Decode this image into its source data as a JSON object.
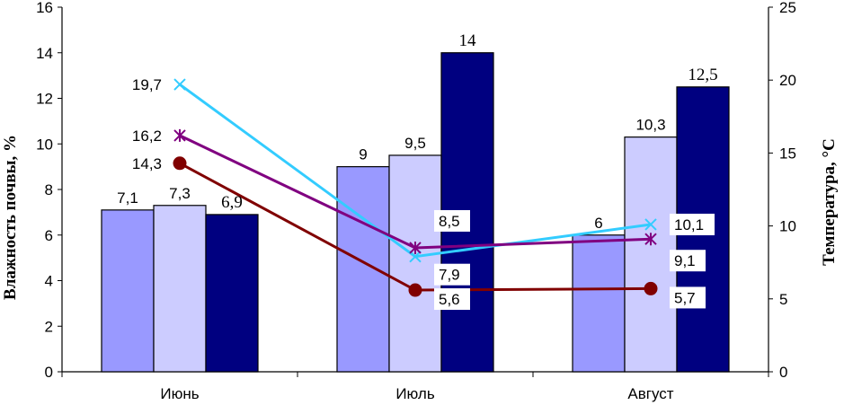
{
  "chart_data": {
    "type": "bar",
    "title": "",
    "categories": [
      "Июнь",
      "Июль",
      "Август"
    ],
    "left_axis": {
      "label": "Влажность почвы, %",
      "range": [
        0,
        16
      ],
      "ticks": [
        "0",
        "2",
        "4",
        "6",
        "8",
        "10",
        "12",
        "14",
        "16"
      ]
    },
    "right_axis": {
      "label": "Температура, °С",
      "range": [
        0,
        25
      ],
      "ticks": [
        "0",
        "5",
        "10",
        "15",
        "20",
        "25"
      ]
    },
    "bar_series": [
      {
        "color": "#9999ff",
        "values": [
          7.1,
          9,
          6
        ],
        "labels": [
          "7,1",
          "9",
          "6"
        ]
      },
      {
        "color": "#ccccff",
        "values": [
          7.3,
          9.5,
          10.3
        ],
        "labels": [
          "7,3",
          "9,5",
          "10,3"
        ]
      },
      {
        "color": "#000080",
        "values": [
          6.9,
          14,
          12.5
        ],
        "labels": [
          "6,9",
          "14",
          "12,5"
        ]
      }
    ],
    "line_series": [
      {
        "color": "#33ccff",
        "marker": "x",
        "values": [
          19.7,
          7.9,
          10.1
        ],
        "labels": [
          "19,7",
          "7,9",
          "10,1"
        ]
      },
      {
        "color": "#800080",
        "marker": "star",
        "values": [
          16.2,
          8.5,
          9.1
        ],
        "labels": [
          "16,2",
          "8,5",
          "9,1"
        ]
      },
      {
        "color": "#800000",
        "marker": "circle",
        "values": [
          14.3,
          5.6,
          5.7
        ],
        "labels": [
          "14,3",
          "5,6",
          "5,7"
        ]
      }
    ],
    "grid": false,
    "legend": "none"
  }
}
